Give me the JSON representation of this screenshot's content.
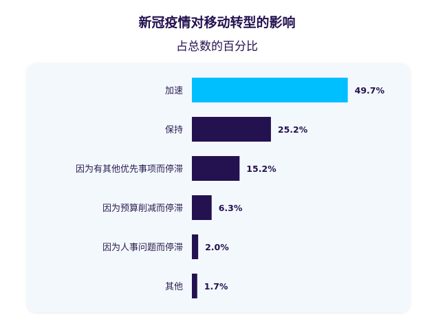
{
  "header": {
    "title": "新冠疫情对移动转型的影响",
    "subtitle": "占总数的百分比"
  },
  "chart_data": {
    "type": "bar",
    "orientation": "horizontal",
    "title": "新冠疫情对移动转型的影响",
    "subtitle": "占总数的百分比",
    "categories": [
      "加速",
      "保持",
      "因为有其他优先事项而停滞",
      "因为预算削减而停滞",
      "因为人事问题而停滞",
      "其他"
    ],
    "values": [
      49.7,
      25.2,
      15.2,
      6.3,
      2.0,
      1.7
    ],
    "value_labels": [
      "49.7%",
      "25.2%",
      "15.2%",
      "6.3%",
      "2.0%",
      "1.7%"
    ],
    "xlim": [
      0,
      50
    ],
    "grid": false,
    "legend": "none",
    "colors": {
      "highlight": "#00bfff",
      "default": "#24114f"
    }
  }
}
